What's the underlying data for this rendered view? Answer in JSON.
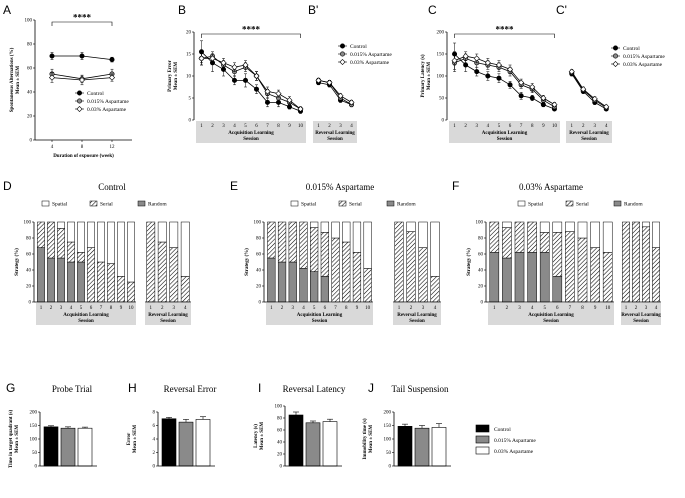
{
  "colors": {
    "control": "#000000",
    "low": "#8a8a8a",
    "high": "#ffffff",
    "session_box": "#d9d9d9"
  },
  "group_labels": [
    "Control",
    "0.015% Aspartame",
    "0.03% Aspartame"
  ],
  "chart_data": [
    {
      "id": "A",
      "type": "line",
      "x": [
        4,
        8,
        12
      ],
      "xlabel": "Duration of exposure (week)",
      "ylabel_lines": [
        "Spontaneous Alternations (%)",
        "Mean ± SEM"
      ],
      "ylim": [
        0,
        100
      ],
      "yticks": [
        0,
        20,
        40,
        60,
        80,
        100
      ],
      "significance": "****",
      "series": [
        {
          "name": "Control",
          "marker": "filled-circle",
          "values": [
            70,
            70,
            67
          ],
          "err": [
            3,
            3,
            2
          ]
        },
        {
          "name": "0.015% Aspartame",
          "marker": "grey-circle",
          "values": [
            55,
            51,
            55
          ],
          "err": [
            4,
            3,
            4
          ]
        },
        {
          "name": "0.03% Aspartame",
          "marker": "open-diamond",
          "values": [
            52,
            50,
            52
          ],
          "err": [
            4,
            4,
            3
          ]
        }
      ]
    },
    {
      "id": "B",
      "type": "line",
      "ylabel_lines": [
        "Primary Error",
        "Mean ± SEM"
      ],
      "ylim": [
        0,
        20
      ],
      "yticks": [
        0,
        5,
        10,
        15,
        20
      ],
      "significance": "****",
      "acq_sessions": [
        "1",
        "2",
        "3",
        "4",
        "5",
        "6",
        "7",
        "8",
        "9",
        "10"
      ],
      "rev_sessions": [
        "1",
        "2",
        "3",
        "4"
      ],
      "acq_label_lines": [
        "Acquisition Learning",
        "Session"
      ],
      "rev_label_lines": [
        "Reversal Learning",
        "Session"
      ],
      "series": [
        {
          "name": "Control",
          "marker": "filled-circle",
          "acq": [
            15.5,
            13,
            11.5,
            9,
            9,
            7,
            4,
            4,
            3,
            2
          ],
          "acq_err": [
            2.5,
            2,
            1.5,
            1,
            1.5,
            1,
            1,
            1,
            0.5,
            0.5
          ],
          "rev": [
            8.5,
            8,
            4.5,
            3.5
          ],
          "rev_err": [
            0.5,
            0.5,
            0.5,
            0.5
          ]
        },
        {
          "name": "0.015% Aspartame",
          "marker": "grey-circle",
          "acq": [
            14,
            14.5,
            12.5,
            11,
            12,
            10,
            6,
            5,
            4,
            2.5
          ],
          "acq_err": [
            1.5,
            1,
            1,
            1,
            1,
            1,
            1,
            0.8,
            0.8,
            0.5
          ],
          "rev": [
            9,
            8.5,
            5,
            3.5
          ],
          "rev_err": [
            0.5,
            0.5,
            0.5,
            0.5
          ]
        },
        {
          "name": "0.03% Aspartame",
          "marker": "open-diamond",
          "acq": [
            14,
            14,
            13,
            12,
            12.5,
            10,
            6.5,
            6,
            4.5,
            2.5
          ],
          "acq_err": [
            1.5,
            1,
            1,
            1,
            1,
            1,
            1,
            0.8,
            0.8,
            0.5
          ],
          "rev": [
            9,
            8.5,
            5.5,
            4
          ],
          "rev_err": [
            0.5,
            0.5,
            0.5,
            0.5
          ]
        }
      ]
    },
    {
      "id": "C",
      "type": "line",
      "ylabel_lines": [
        "Primary Latency (s)",
        "Mean ± SEM"
      ],
      "ylim": [
        0,
        200
      ],
      "yticks": [
        0,
        50,
        100,
        150,
        200
      ],
      "significance": "****",
      "acq_sessions": [
        "1",
        "2",
        "3",
        "4",
        "5",
        "6",
        "7",
        "8",
        "9",
        "10"
      ],
      "rev_sessions": [
        "1",
        "2",
        "3",
        "4"
      ],
      "acq_label_lines": [
        "Acquisition Learning",
        "Session"
      ],
      "rev_label_lines": [
        "Reversal Learning",
        "Session"
      ],
      "series": [
        {
          "name": "Control",
          "marker": "filled-circle",
          "acq": [
            150,
            125,
            110,
            100,
            95,
            80,
            55,
            50,
            35,
            25
          ],
          "acq_err": [
            25,
            15,
            10,
            10,
            10,
            8,
            8,
            6,
            5,
            4
          ],
          "rev": [
            105,
            65,
            40,
            25
          ],
          "rev_err": [
            5,
            5,
            5,
            4
          ]
        },
        {
          "name": "0.015% Aspartame",
          "marker": "grey-circle",
          "acq": [
            130,
            140,
            130,
            125,
            120,
            110,
            80,
            70,
            45,
            30
          ],
          "acq_err": [
            20,
            10,
            10,
            10,
            10,
            10,
            8,
            8,
            6,
            5
          ],
          "rev": [
            108,
            68,
            45,
            28
          ],
          "rev_err": [
            5,
            5,
            5,
            4
          ]
        },
        {
          "name": "0.03% Aspartame",
          "marker": "open-diamond",
          "acq": [
            135,
            145,
            140,
            130,
            125,
            115,
            85,
            75,
            50,
            35
          ],
          "acq_err": [
            20,
            10,
            10,
            10,
            10,
            10,
            8,
            8,
            6,
            5
          ],
          "rev": [
            110,
            70,
            48,
            30
          ],
          "rev_err": [
            5,
            5,
            5,
            4
          ]
        }
      ]
    },
    {
      "id": "D",
      "type": "bar",
      "title": "Control",
      "ylabel": "Strategy (%)",
      "ylim": [
        0,
        100
      ],
      "yticks": [
        0,
        20,
        40,
        60,
        80,
        100
      ],
      "legend": [
        "Spatial",
        "Serial",
        "Random"
      ],
      "acq_sessions": [
        "1",
        "2",
        "3",
        "4",
        "5",
        "6",
        "7",
        "8",
        "9",
        "10"
      ],
      "rev_sessions": [
        "1",
        "2",
        "3",
        "4"
      ],
      "acq_label_lines": [
        "Acquisition Learning",
        "Session"
      ],
      "rev_label_lines": [
        "Reversal Learning",
        "Session"
      ],
      "acq": {
        "random": [
          68,
          55,
          55,
          50,
          50,
          0,
          0,
          0,
          0,
          0
        ],
        "serial": [
          32,
          45,
          37,
          25,
          12,
          68,
          50,
          48,
          32,
          25
        ],
        "spatial": [
          0,
          0,
          8,
          25,
          38,
          32,
          50,
          52,
          68,
          75
        ]
      },
      "rev": {
        "random": [
          0,
          0,
          0,
          0
        ],
        "serial": [
          100,
          75,
          68,
          32
        ],
        "spatial": [
          0,
          25,
          32,
          68
        ]
      }
    },
    {
      "id": "E",
      "type": "bar",
      "title": "0.015% Aspartame",
      "ylabel": "Strategy (%)",
      "ylim": [
        0,
        100
      ],
      "yticks": [
        0,
        20,
        40,
        60,
        80,
        100
      ],
      "legend": [
        "Spatial",
        "Serial",
        "Random"
      ],
      "acq_sessions": [
        "1",
        "2",
        "3",
        "4",
        "5",
        "6",
        "7",
        "8",
        "9",
        "10"
      ],
      "rev_sessions": [
        "1",
        "2",
        "3",
        "4"
      ],
      "acq_label_lines": [
        "Acquisition Learning",
        "Session"
      ],
      "rev_label_lines": [
        "Reversal Learning",
        "Session"
      ],
      "acq": {
        "random": [
          55,
          50,
          50,
          42,
          38,
          32,
          0,
          0,
          0,
          0
        ],
        "serial": [
          45,
          50,
          50,
          58,
          55,
          55,
          80,
          75,
          62,
          42
        ],
        "spatial": [
          0,
          0,
          0,
          0,
          7,
          13,
          20,
          25,
          38,
          58
        ]
      },
      "rev": {
        "random": [
          0,
          0,
          0,
          0
        ],
        "serial": [
          100,
          88,
          68,
          32
        ],
        "spatial": [
          0,
          12,
          32,
          68
        ]
      }
    },
    {
      "id": "F",
      "type": "bar",
      "title": "0.03% Aspartame",
      "ylabel": "Strategy (%)",
      "ylim": [
        0,
        100
      ],
      "yticks": [
        0,
        20,
        40,
        60,
        80,
        100
      ],
      "legend": [
        "Spatial",
        "Serial",
        "Random"
      ],
      "acq_sessions": [
        "1",
        "2",
        "3",
        "4",
        "5",
        "6",
        "7",
        "8",
        "9",
        "10"
      ],
      "rev_sessions": [
        "1",
        "2",
        "3",
        "4"
      ],
      "acq_label_lines": [
        "Acquisition Learning",
        "Session"
      ],
      "rev_label_lines": [
        "Reversal Learning",
        "Session"
      ],
      "acq": {
        "random": [
          62,
          55,
          62,
          62,
          62,
          32,
          0,
          0,
          0,
          0
        ],
        "serial": [
          38,
          38,
          38,
          38,
          25,
          55,
          88,
          80,
          68,
          62
        ],
        "spatial": [
          0,
          7,
          0,
          0,
          13,
          13,
          12,
          20,
          32,
          38
        ]
      },
      "rev": {
        "random": [
          0,
          0,
          0,
          0
        ],
        "serial": [
          100,
          100,
          94,
          68
        ],
        "spatial": [
          0,
          0,
          6,
          32
        ]
      }
    },
    {
      "id": "G",
      "type": "bar",
      "title": "Probe Trial",
      "ylabel_lines": [
        "Time in target quadrant (s)",
        "Mean ± SEM"
      ],
      "ylim": [
        0,
        200
      ],
      "yticks": [
        0,
        50,
        100,
        150,
        200
      ],
      "values": [
        145,
        140,
        140
      ],
      "err": [
        4,
        5,
        4
      ]
    },
    {
      "id": "H",
      "type": "bar",
      "title": "Reversal Error",
      "ylabel_lines": [
        "Error",
        "Mean ± SEM"
      ],
      "ylim": [
        0,
        8
      ],
      "yticks": [
        0,
        2,
        4,
        6,
        8
      ],
      "values": [
        7.0,
        6.5,
        6.9
      ],
      "err": [
        0.2,
        0.4,
        0.4
      ]
    },
    {
      "id": "I",
      "type": "bar",
      "title": "Reversal Latency",
      "ylabel_lines": [
        "Latency (s)",
        "Mean ± SEM"
      ],
      "ylim": [
        0,
        100
      ],
      "yticks": [
        0,
        20,
        40,
        60,
        80,
        100
      ],
      "values": [
        85,
        72,
        74
      ],
      "err": [
        5,
        3,
        4
      ]
    },
    {
      "id": "J",
      "type": "bar",
      "title": "Tail Suspension",
      "ylabel_lines": [
        "Immobility time (s)",
        "Mean ± SEM"
      ],
      "ylim": [
        0,
        200
      ],
      "yticks": [
        0,
        50,
        100,
        150,
        200
      ],
      "values": [
        147,
        140,
        143
      ],
      "err": [
        8,
        10,
        14
      ]
    }
  ],
  "panel_letters": {
    "A": "A",
    "B": "B",
    "Bp": "B'",
    "C": "C",
    "Cp": "C'",
    "D": "D",
    "E": "E",
    "F": "F",
    "G": "G",
    "H": "H",
    "I": "I",
    "J": "J"
  }
}
